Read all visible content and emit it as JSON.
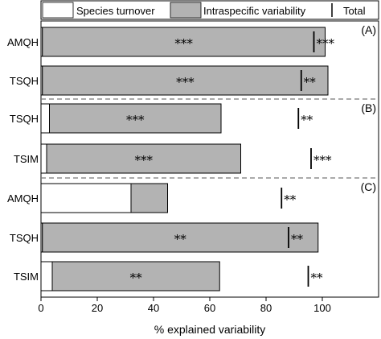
{
  "legend": {
    "items": [
      {
        "label": "Species turnover",
        "swatch_color": "#ffffff"
      },
      {
        "label": "Intraspecific variability",
        "swatch_color": "#b3b3b3"
      },
      {
        "label": "Total",
        "symbol": "vertical-line"
      }
    ]
  },
  "chart_data": {
    "type": "bar",
    "orientation": "horizontal",
    "stacked": true,
    "xlabel": "% explained variability",
    "xlim": [
      0,
      120
    ],
    "xticks": [
      "0",
      "20",
      "40",
      "60",
      "80",
      "100"
    ],
    "xtick_values": [
      0,
      20,
      40,
      60,
      80,
      100
    ],
    "grid": false,
    "colors": {
      "species_turnover": "#ffffff",
      "intraspecific": "#b3b3b3",
      "total": "#000000"
    },
    "series": [
      {
        "name": "Species turnover"
      },
      {
        "name": "Intraspecific variability"
      },
      {
        "name": "Total"
      }
    ],
    "panels": [
      {
        "label": "(A)",
        "rows": [
          {
            "category": "AMQH",
            "species_turnover": 0.5,
            "intraspecific": 100.5,
            "total": 97,
            "total_sig": "***",
            "intra_sig": "***"
          },
          {
            "category": "TSQH",
            "species_turnover": 0.5,
            "intraspecific": 101.5,
            "total": 92.5,
            "total_sig": "**",
            "intra_sig": "***"
          }
        ]
      },
      {
        "label": "(B)",
        "rows": [
          {
            "category": "TSQH",
            "species_turnover": 3,
            "intraspecific": 61,
            "total": 91.5,
            "total_sig": "**",
            "intra_sig": "***"
          },
          {
            "category": "TSIM",
            "species_turnover": 2,
            "intraspecific": 69,
            "total": 96,
            "total_sig": "***",
            "intra_sig": "***"
          }
        ]
      },
      {
        "label": "(C)",
        "rows": [
          {
            "category": "AMQH",
            "species_turnover": 32,
            "intraspecific": 13,
            "total": 85.5,
            "total_sig": "**",
            "intra_sig": ""
          },
          {
            "category": "TSQH",
            "species_turnover": 0.5,
            "intraspecific": 98,
            "total": 88,
            "total_sig": "**",
            "intra_sig": "**"
          },
          {
            "category": "TSIM",
            "species_turnover": 4,
            "intraspecific": 59.5,
            "total": 95,
            "total_sig": "**",
            "intra_sig": "**"
          }
        ]
      }
    ]
  }
}
